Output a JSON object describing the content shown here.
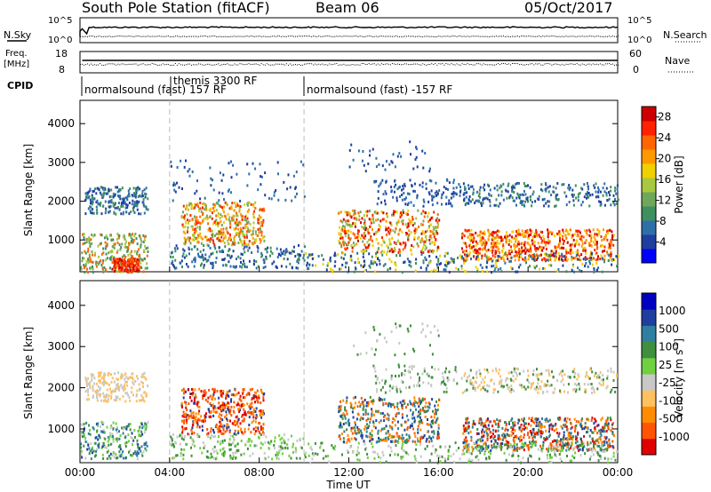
{
  "header": {
    "station": "South Pole Station (fitACF)",
    "beam": "Beam 06",
    "date": "05/Oct/2017"
  },
  "panels": {
    "sky": {
      "left_label": "N.Sky",
      "right_label": "N.Search",
      "left_ticks": [
        "10^5",
        "10^0"
      ],
      "right_ticks": [
        "10^5",
        "10^0"
      ]
    },
    "freq": {
      "left_label_1": "Freq.",
      "left_label_2": "[MHz]",
      "right_label": "Nave",
      "left_ticks": [
        "18",
        "8"
      ],
      "right_ticks": [
        "60",
        "0"
      ]
    },
    "cpid": {
      "label": "CPID",
      "segments": [
        {
          "text": "normalsound (fast) 157 RF"
        },
        {
          "text": "themis 3300 RF"
        },
        {
          "text": "normalsound (fast) -157 RF"
        }
      ]
    }
  },
  "colors": {
    "power_scale": [
      "#0000ff",
      "#1e3fa0",
      "#2f6fa8",
      "#3f8f5f",
      "#6fa85a",
      "#a8c840",
      "#f0d000",
      "#ff9900",
      "#ff6600",
      "#ff2200",
      "#cc0000"
    ],
    "velocity_scale": [
      "#e00000",
      "#ff5500",
      "#ff8c00",
      "#ffc060",
      "#c8c8c8",
      "#6fd040",
      "#3f8f3f",
      "#2f7fa0",
      "#1e3fa0",
      "#0000c0"
    ]
  },
  "chart_data": [
    {
      "type": "heatmap",
      "title": "Power",
      "xlabel": "",
      "ylabel": "Slant Range [km]",
      "ylim": [
        180,
        4600
      ],
      "y_ticks": [
        "1000",
        "2000",
        "3000",
        "4000"
      ],
      "colorbar_label": "Power [dB]",
      "colorbar_ticks": [
        "4",
        "8",
        "12",
        "16",
        "20",
        "24",
        "28"
      ],
      "colorbar_range": [
        0,
        30
      ]
    },
    {
      "type": "heatmap",
      "title": "Velocity",
      "xlabel": "Time UT",
      "ylabel": "Slant Range [km]",
      "ylim": [
        180,
        4600
      ],
      "y_ticks": [
        "1000",
        "2000",
        "3000",
        "4000"
      ],
      "x_ticks": [
        "00:00",
        "04:00",
        "08:00",
        "12:00",
        "16:00",
        "20:00",
        "00:00"
      ],
      "colorbar_label": "Velocity [m s^-1]",
      "colorbar_ticks": [
        "1000",
        "500",
        "100",
        "25",
        "-25",
        "-100",
        "-500",
        "-1000"
      ]
    }
  ],
  "axis": {
    "time_label": "Time UT",
    "range_label": "Slant Range [km]",
    "power_label": "Power [dB]",
    "velocity_label": "Velocity [m s",
    "velocity_unit_sup": "-1",
    "velocity_close": "]"
  }
}
